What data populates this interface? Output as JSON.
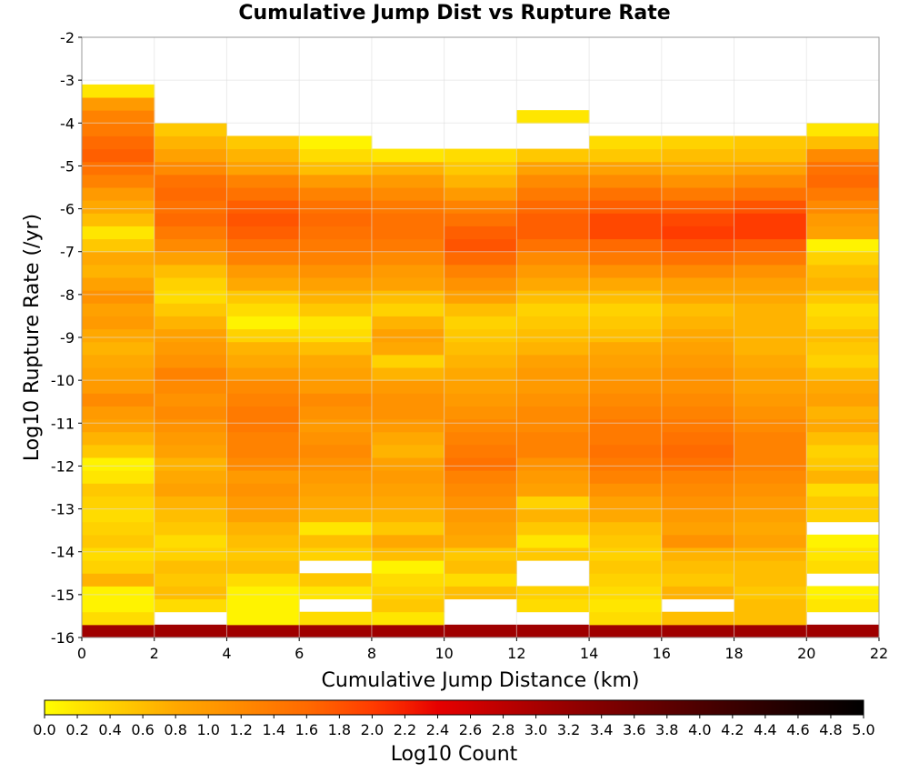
{
  "chart_data": {
    "type": "heatmap",
    "title": "Cumulative Jump Dist vs Rupture Rate",
    "xlabel": "Cumulative Jump Distance (km)",
    "ylabel": "Log10 Rupture Rate (/yr)",
    "xlim": [
      0,
      22
    ],
    "ylim": [
      -16,
      -2
    ],
    "x_ticks": [
      "0",
      "2",
      "4",
      "6",
      "8",
      "10",
      "12",
      "14",
      "16",
      "18",
      "20",
      "22"
    ],
    "y_ticks": [
      "-2",
      "-3",
      "-4",
      "-5",
      "-6",
      "-7",
      "-8",
      "-9",
      "-10",
      "-11",
      "-12",
      "-13",
      "-14",
      "-15",
      "-16"
    ],
    "x_bin_edges": [
      0,
      2,
      4,
      6,
      8,
      10,
      12,
      14,
      16,
      18,
      20,
      22
    ],
    "y_bin_size": 0.3,
    "y_bin_start": -16,
    "y_bin_count": 43,
    "grid": true,
    "colorbar": {
      "label": "Log10 Count",
      "min": 0.0,
      "max": 5.0,
      "ticks": [
        "0.0",
        "0.2",
        "0.4",
        "0.6",
        "0.8",
        "1.0",
        "1.2",
        "1.4",
        "1.6",
        "1.8",
        "2.0",
        "2.2",
        "2.4",
        "2.6",
        "2.8",
        "3.0",
        "3.2",
        "3.4",
        "3.6",
        "3.8",
        "4.0",
        "4.2",
        "4.4",
        "4.6",
        "4.8",
        "5.0"
      ],
      "colors": [
        {
          "v": 0.0,
          "c": "#ffff00"
        },
        {
          "v": 0.2,
          "c": "#ffe600"
        },
        {
          "v": 0.4,
          "c": "#ffd200"
        },
        {
          "v": 0.6,
          "c": "#ffbe00"
        },
        {
          "v": 0.8,
          "c": "#ffa800"
        },
        {
          "v": 1.0,
          "c": "#ff9a00"
        },
        {
          "v": 1.2,
          "c": "#ff8a00"
        },
        {
          "v": 1.4,
          "c": "#ff7a00"
        },
        {
          "v": 1.6,
          "c": "#ff6a00"
        },
        {
          "v": 1.8,
          "c": "#ff5400"
        },
        {
          "v": 2.0,
          "c": "#ff3c00"
        },
        {
          "v": 2.2,
          "c": "#f52000"
        },
        {
          "v": 2.4,
          "c": "#e60000"
        },
        {
          "v": 2.6,
          "c": "#d20000"
        },
        {
          "v": 2.8,
          "c": "#bc0000"
        },
        {
          "v": 3.0,
          "c": "#a80000"
        },
        {
          "v": 3.4,
          "c": "#820000"
        },
        {
          "v": 3.8,
          "c": "#5e0000"
        },
        {
          "v": 4.2,
          "c": "#3c0000"
        },
        {
          "v": 4.6,
          "c": "#1c0000"
        },
        {
          "v": 5.0,
          "c": "#000000"
        }
      ]
    },
    "columns": [
      {
        "x0": 0,
        "x1": 2,
        "counts": [
          3.1,
          0.3,
          0.1,
          0.1,
          0.7,
          0.4,
          0.3,
          0.5,
          0.4,
          0.3,
          0.4,
          0.5,
          0.2,
          0.1,
          0.5,
          0.7,
          0.9,
          1.0,
          1.2,
          1.0,
          0.9,
          0.8,
          0.7,
          0.8,
          1.0,
          0.9,
          1.1,
          0.9,
          0.7,
          0.8,
          0.5,
          0.2,
          0.6,
          0.8,
          1.0,
          1.3,
          1.5,
          1.7,
          1.6,
          1.4,
          1.3,
          1.0,
          0.2
        ]
      },
      {
        "x0": 2,
        "x1": 4,
        "counts": [
          3.1,
          null,
          0.3,
          0.6,
          0.5,
          0.6,
          0.4,
          0.3,
          0.5,
          0.6,
          0.7,
          0.9,
          0.8,
          0.7,
          0.9,
          1.0,
          1.1,
          1.2,
          1.1,
          1.2,
          1.3,
          1.1,
          1.0,
          0.9,
          0.7,
          0.5,
          0.3,
          0.4,
          0.6,
          0.9,
          1.2,
          1.4,
          1.6,
          1.5,
          1.6,
          1.5,
          1.2,
          0.9,
          0.7,
          0.5,
          null,
          null,
          null
        ]
      },
      {
        "x0": 4,
        "x1": 6,
        "counts": [
          3.1,
          0.1,
          0.1,
          0.1,
          0.3,
          0.6,
          0.5,
          0.6,
          0.7,
          0.9,
          1.0,
          1.1,
          1.0,
          1.2,
          1.3,
          1.3,
          1.4,
          1.4,
          1.3,
          1.2,
          1.0,
          0.8,
          0.7,
          0.4,
          0.1,
          0.3,
          0.5,
          0.8,
          1.0,
          1.3,
          1.5,
          1.7,
          1.8,
          1.7,
          1.5,
          1.3,
          0.9,
          0.7,
          0.5,
          null,
          null,
          null,
          null
        ]
      },
      {
        "x0": 6,
        "x1": 8,
        "counts": [
          3.1,
          0.3,
          null,
          0.2,
          0.5,
          null,
          0.4,
          0.6,
          0.2,
          0.7,
          0.8,
          0.9,
          1.0,
          1.1,
          1.2,
          1.1,
          1.0,
          1.1,
          1.2,
          1.0,
          0.9,
          0.8,
          0.6,
          0.3,
          0.2,
          0.5,
          0.7,
          0.9,
          1.1,
          1.3,
          1.4,
          1.5,
          1.6,
          1.5,
          1.3,
          1.0,
          0.6,
          0.3,
          0.1,
          null,
          null,
          null,
          null
        ]
      },
      {
        "x0": 8,
        "x1": 10,
        "counts": [
          3.1,
          0.2,
          0.5,
          0.4,
          0.3,
          0.1,
          0.6,
          0.8,
          0.5,
          0.7,
          0.8,
          0.9,
          1.0,
          0.9,
          0.7,
          0.8,
          1.0,
          1.1,
          1.1,
          1.0,
          0.7,
          0.4,
          0.8,
          0.9,
          0.7,
          0.4,
          0.6,
          0.9,
          1.0,
          1.2,
          1.4,
          1.5,
          1.5,
          1.4,
          1.2,
          1.0,
          0.7,
          0.2,
          null,
          null,
          null,
          null,
          null
        ]
      },
      {
        "x0": 10,
        "x1": 12,
        "counts": [
          3.1,
          null,
          null,
          0.6,
          0.3,
          0.6,
          0.5,
          0.8,
          0.9,
          1.0,
          1.1,
          1.2,
          1.3,
          1.5,
          1.4,
          1.3,
          1.2,
          1.1,
          1.0,
          0.9,
          0.8,
          0.7,
          0.6,
          0.5,
          0.4,
          0.6,
          0.9,
          1.1,
          1.3,
          1.6,
          1.8,
          1.7,
          1.5,
          1.3,
          1.0,
          0.7,
          0.5,
          0.3,
          null,
          null,
          null,
          null,
          null
        ]
      },
      {
        "x0": 12,
        "x1": 14,
        "counts": [
          3.1,
          null,
          0.3,
          0.4,
          null,
          null,
          0.5,
          0.2,
          0.5,
          0.7,
          0.4,
          0.9,
          1.0,
          1.1,
          1.3,
          1.3,
          1.2,
          1.2,
          1.1,
          1.0,
          1.0,
          0.9,
          0.7,
          0.6,
          0.5,
          0.4,
          0.6,
          0.8,
          1.0,
          1.2,
          1.5,
          1.7,
          1.7,
          1.6,
          1.4,
          1.2,
          0.9,
          0.5,
          null,
          null,
          0.2,
          null,
          null
        ]
      },
      {
        "x0": 14,
        "x1": 16,
        "counts": [
          3.1,
          0.3,
          0.2,
          0.3,
          0.4,
          0.5,
          0.4,
          0.5,
          0.6,
          0.8,
          0.9,
          1.1,
          1.3,
          1.4,
          1.5,
          1.4,
          1.4,
          1.3,
          1.2,
          1.1,
          1.0,
          0.9,
          0.8,
          0.6,
          0.5,
          0.4,
          0.6,
          0.8,
          1.1,
          1.4,
          1.6,
          1.9,
          1.9,
          1.7,
          1.5,
          1.2,
          0.9,
          0.5,
          0.3,
          null,
          null,
          null,
          null
        ]
      },
      {
        "x0": 16,
        "x1": 18,
        "counts": [
          3.1,
          0.6,
          null,
          0.7,
          0.5,
          0.6,
          0.7,
          1.1,
          0.9,
          1.0,
          1.1,
          1.2,
          1.3,
          1.5,
          1.6,
          1.5,
          1.4,
          1.3,
          1.2,
          1.1,
          1.1,
          1.0,
          0.9,
          0.8,
          0.7,
          0.6,
          0.8,
          0.9,
          1.2,
          1.5,
          1.8,
          2.0,
          1.9,
          1.7,
          1.4,
          1.1,
          0.8,
          0.6,
          0.4,
          null,
          null,
          null,
          null
        ]
      },
      {
        "x0": 18,
        "x1": 20,
        "counts": [
          3.1,
          0.6,
          0.6,
          0.5,
          0.6,
          0.6,
          0.7,
          0.9,
          0.8,
          0.9,
          1.0,
          1.1,
          1.2,
          1.3,
          1.3,
          1.3,
          1.2,
          1.1,
          1.0,
          0.9,
          0.9,
          0.8,
          0.7,
          0.7,
          0.7,
          0.7,
          0.8,
          0.9,
          1.1,
          1.4,
          1.7,
          2.0,
          2.0,
          1.8,
          1.5,
          1.2,
          0.9,
          0.6,
          0.5,
          null,
          null,
          null,
          null
        ]
      },
      {
        "x0": 20,
        "x1": 22,
        "counts": [
          3.1,
          null,
          0.2,
          0.1,
          null,
          0.3,
          0.2,
          0.1,
          null,
          0.4,
          0.5,
          0.3,
          0.7,
          0.5,
          0.4,
          0.6,
          0.8,
          0.7,
          0.9,
          0.8,
          0.6,
          0.4,
          0.5,
          0.6,
          0.4,
          0.3,
          0.5,
          0.7,
          0.6,
          0.4,
          0.1,
          0.9,
          1.0,
          1.2,
          1.4,
          1.6,
          1.5,
          1.2,
          0.6,
          0.2,
          null,
          null,
          null
        ]
      }
    ]
  }
}
